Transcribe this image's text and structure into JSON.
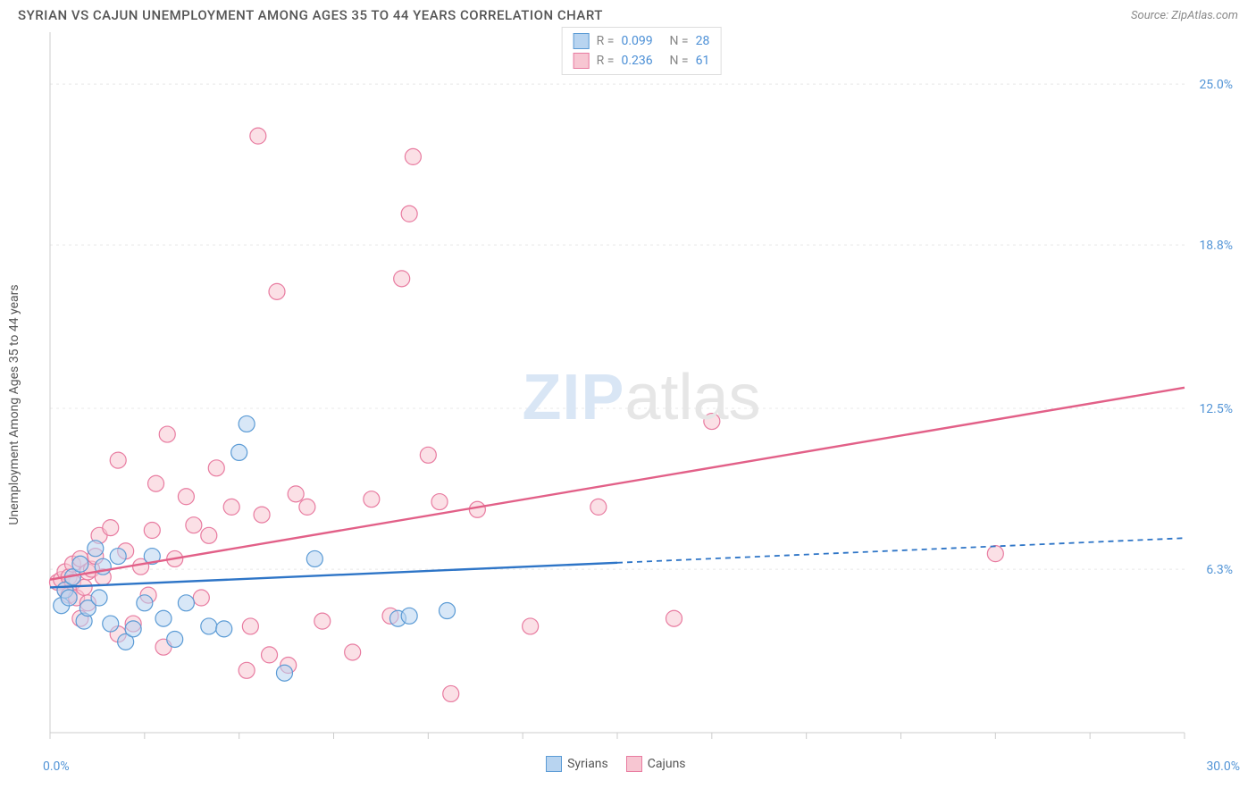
{
  "title": "SYRIAN VS CAJUN UNEMPLOYMENT AMONG AGES 35 TO 44 YEARS CORRELATION CHART",
  "source": "Source: ZipAtlas.com",
  "y_axis_label": "Unemployment Among Ages 35 to 44 years",
  "watermark_zip": "ZIP",
  "watermark_atlas": "atlas",
  "chart": {
    "type": "scatter",
    "xlim": [
      0,
      30
    ],
    "ylim": [
      0,
      27
    ],
    "x_start_label": "0.0%",
    "x_end_label": "30.0%",
    "y_grid": [
      6.3,
      12.5,
      18.8,
      25.0
    ],
    "y_grid_labels": [
      "6.3%",
      "12.5%",
      "18.8%",
      "25.0%"
    ],
    "x_ticks": [
      0,
      2.5,
      5,
      7.5,
      10,
      12.5,
      15,
      17.5,
      20,
      22.5,
      25,
      27.5,
      30
    ],
    "background": "#ffffff",
    "grid_color": "#e8e8e8",
    "axis_color": "#cccccc",
    "tick_label_color": "#5294d6",
    "marker_radius": 9,
    "marker_stroke_width": 1.2,
    "series": [
      {
        "name": "Syrians",
        "fill": "#b8d4f0",
        "stroke": "#5b9bd5",
        "fill_opacity": 0.55,
        "R": "0.099",
        "N": "28",
        "trend": {
          "y0": 5.6,
          "y30": 7.5,
          "solid_to_x": 15,
          "stroke": "#2e75c7",
          "width": 2.4
        },
        "points": [
          [
            0.3,
            4.9
          ],
          [
            0.4,
            5.5
          ],
          [
            0.5,
            5.2
          ],
          [
            0.6,
            6.0
          ],
          [
            0.8,
            6.5
          ],
          [
            0.9,
            4.3
          ],
          [
            1.0,
            4.8
          ],
          [
            1.2,
            7.1
          ],
          [
            1.3,
            5.2
          ],
          [
            1.4,
            6.4
          ],
          [
            1.6,
            4.2
          ],
          [
            1.8,
            6.8
          ],
          [
            2.0,
            3.5
          ],
          [
            2.2,
            4.0
          ],
          [
            2.5,
            5.0
          ],
          [
            2.7,
            6.8
          ],
          [
            3.0,
            4.4
          ],
          [
            3.3,
            3.6
          ],
          [
            3.6,
            5.0
          ],
          [
            4.2,
            4.1
          ],
          [
            4.6,
            4.0
          ],
          [
            5.0,
            10.8
          ],
          [
            5.2,
            11.9
          ],
          [
            6.2,
            2.3
          ],
          [
            7.0,
            6.7
          ],
          [
            9.2,
            4.4
          ],
          [
            9.5,
            4.5
          ],
          [
            10.5,
            4.7
          ]
        ]
      },
      {
        "name": "Cajuns",
        "fill": "#f7c6d2",
        "stroke": "#e87ba0",
        "fill_opacity": 0.55,
        "R": "0.236",
        "N": "61",
        "trend": {
          "y0": 5.9,
          "y30": 13.3,
          "solid_to_x": 30,
          "stroke": "#e26088",
          "width": 2.4
        },
        "points": [
          [
            0.2,
            5.8
          ],
          [
            0.3,
            5.9
          ],
          [
            0.4,
            6.2
          ],
          [
            0.4,
            5.5
          ],
          [
            0.5,
            6.0
          ],
          [
            0.5,
            5.3
          ],
          [
            0.6,
            5.8
          ],
          [
            0.6,
            6.5
          ],
          [
            0.7,
            5.2
          ],
          [
            0.8,
            4.4
          ],
          [
            0.8,
            6.7
          ],
          [
            0.9,
            5.6
          ],
          [
            1.0,
            6.2
          ],
          [
            1.0,
            5.0
          ],
          [
            1.1,
            6.3
          ],
          [
            1.2,
            6.8
          ],
          [
            1.3,
            7.6
          ],
          [
            1.4,
            6.0
          ],
          [
            1.6,
            7.9
          ],
          [
            1.8,
            3.8
          ],
          [
            1.8,
            10.5
          ],
          [
            2.0,
            7.0
          ],
          [
            2.2,
            4.2
          ],
          [
            2.4,
            6.4
          ],
          [
            2.6,
            5.3
          ],
          [
            2.7,
            7.8
          ],
          [
            2.8,
            9.6
          ],
          [
            3.0,
            3.3
          ],
          [
            3.1,
            11.5
          ],
          [
            3.3,
            6.7
          ],
          [
            3.6,
            9.1
          ],
          [
            3.8,
            8.0
          ],
          [
            4.0,
            5.2
          ],
          [
            4.2,
            7.6
          ],
          [
            4.4,
            10.2
          ],
          [
            4.8,
            8.7
          ],
          [
            5.2,
            2.4
          ],
          [
            5.3,
            4.1
          ],
          [
            5.5,
            23.0
          ],
          [
            5.6,
            8.4
          ],
          [
            5.8,
            3.0
          ],
          [
            6.0,
            17.0
          ],
          [
            6.3,
            2.6
          ],
          [
            6.5,
            9.2
          ],
          [
            6.8,
            8.7
          ],
          [
            7.2,
            4.3
          ],
          [
            8.0,
            3.1
          ],
          [
            8.5,
            9.0
          ],
          [
            9.0,
            4.5
          ],
          [
            9.3,
            17.5
          ],
          [
            9.5,
            20.0
          ],
          [
            9.6,
            22.2
          ],
          [
            10.0,
            10.7
          ],
          [
            10.3,
            8.9
          ],
          [
            10.6,
            1.5
          ],
          [
            11.3,
            8.6
          ],
          [
            12.7,
            4.1
          ],
          [
            14.5,
            8.7
          ],
          [
            16.5,
            4.4
          ],
          [
            17.5,
            12.0
          ],
          [
            25.0,
            6.9
          ]
        ]
      }
    ],
    "legend_top": {
      "R_label": "R =",
      "N_label": "N =",
      "value_color": "#4b8fd6",
      "label_color": "#888"
    },
    "legend_bottom": [
      {
        "label": "Syrians",
        "fill": "#b8d4f0",
        "stroke": "#5b9bd5"
      },
      {
        "label": "Cajuns",
        "fill": "#f7c6d2",
        "stroke": "#e87ba0"
      }
    ]
  }
}
